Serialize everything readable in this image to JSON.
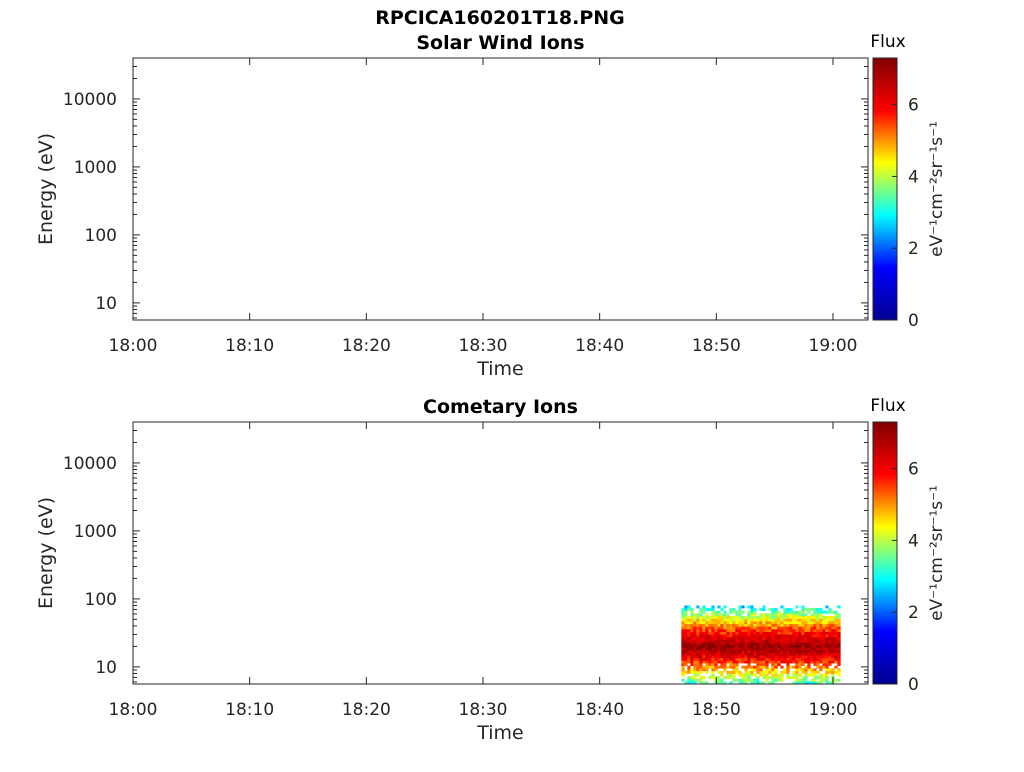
{
  "figure_title": "RPCICA160201T18.PNG",
  "colormap": [
    "#00008f",
    "#0000ff",
    "#00ffff",
    "#ffff00",
    "#ff0000",
    "#800000"
  ],
  "chart_data": [
    {
      "type": "heatmap",
      "title": "Solar Wind Ions",
      "xlabel": "Time",
      "ylabel": "Energy (eV)",
      "y_scale": "log",
      "ylim": [
        5.6,
        40000
      ],
      "yticks": [
        10,
        100,
        1000,
        10000
      ],
      "ytick_labels": [
        "10",
        "100",
        "1000",
        "10000"
      ],
      "xlim": [
        "18:00",
        "19:03"
      ],
      "xticks": [
        "18:00",
        "18:10",
        "18:20",
        "18:30",
        "18:40",
        "18:50",
        "19:00"
      ],
      "colorbar": {
        "title": "Flux",
        "label": "eV⁻¹cm⁻²sr⁻¹s⁻¹",
        "range": [
          0,
          7.3
        ],
        "ticks": [
          "0",
          "2",
          "4",
          "6"
        ]
      },
      "regions": []
    },
    {
      "type": "heatmap",
      "title": "Cometary Ions",
      "xlabel": "Time",
      "ylabel": "Energy (eV)",
      "y_scale": "log",
      "ylim": [
        5.6,
        40000
      ],
      "yticks": [
        10,
        100,
        1000,
        10000
      ],
      "ytick_labels": [
        "10",
        "100",
        "1000",
        "10000"
      ],
      "xlim": [
        "18:00",
        "19:03"
      ],
      "xticks": [
        "18:00",
        "18:10",
        "18:20",
        "18:30",
        "18:40",
        "18:50",
        "19:00"
      ],
      "colorbar": {
        "title": "Flux",
        "label": "eV⁻¹cm⁻²sr⁻¹s⁻¹",
        "range": [
          0,
          7.3
        ],
        "ticks": [
          "0",
          "2",
          "4",
          "6"
        ]
      },
      "regions": [
        {
          "time_start": "18:47",
          "time_end": "19:00.5",
          "energy_min": 5.6,
          "energy_max": 80,
          "flux_min": 2.5,
          "flux_max": 7,
          "peak_energy": 20
        }
      ]
    }
  ]
}
